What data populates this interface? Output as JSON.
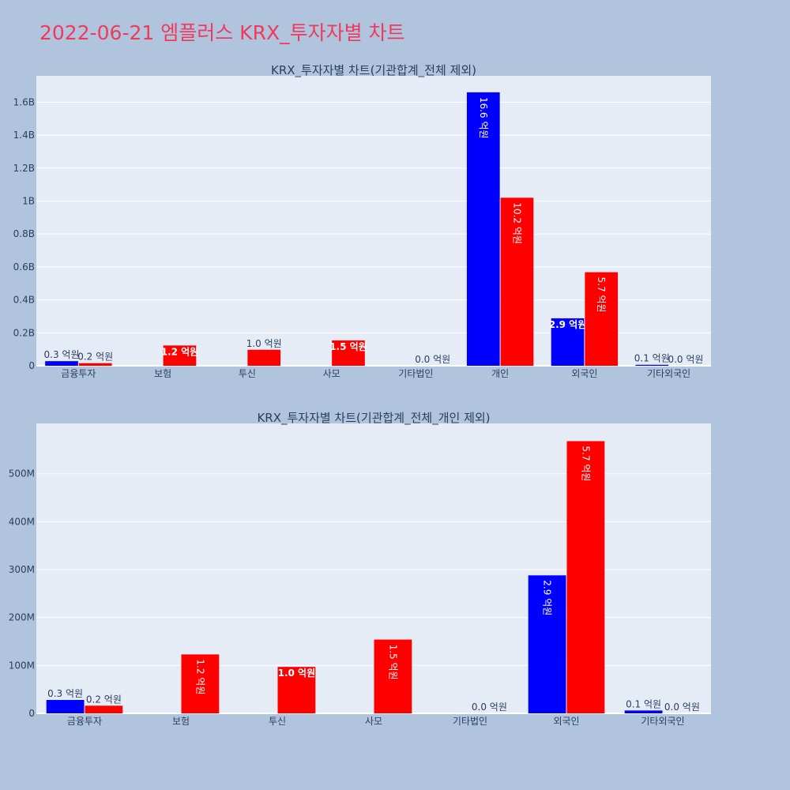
{
  "page": {
    "title": "2022-06-21 엠플러스 KRX_투자자별 차트"
  },
  "colors": {
    "buy": "#0000ff",
    "sell": "#ff0000",
    "plot_bg": "#e5ecf6",
    "paper_bg": "#b0c4de",
    "title": "#ef3b5b"
  },
  "chart_data": [
    {
      "type": "bar",
      "title": "KRX_투자자별 차트(기관합계_전체 제외)",
      "categories": [
        "금융투자",
        "보험",
        "투신",
        "사모",
        "기타법인",
        "개인",
        "외국인",
        "기타외국인"
      ],
      "series": [
        {
          "color": "#0000ff",
          "values": [
            28000000,
            0,
            0,
            0,
            0,
            1660000000,
            288000000,
            6000000
          ],
          "labels": [
            "0.3 억원",
            "",
            "",
            "",
            "",
            "16.6 억원",
            "2.9 억원",
            "0.1 억원"
          ]
        },
        {
          "color": "#ff0000",
          "values": [
            16000000,
            123000000,
            97000000,
            154000000,
            0,
            1020000000,
            568000000,
            0
          ],
          "labels": [
            "0.2 억원",
            "1.2 억원",
            "1.0 억원",
            "1.5 억원",
            "0.0 억원",
            "10.2 억원",
            "5.7 억원",
            "0.0 억원"
          ]
        }
      ],
      "ylim": [
        0,
        1760000000
      ],
      "yticks": [
        0,
        200000000,
        400000000,
        600000000,
        800000000,
        1000000000,
        1200000000,
        1400000000,
        1600000000
      ],
      "yticklabels": [
        "0",
        "0.2B",
        "0.4B",
        "0.6B",
        "0.8B",
        "1B",
        "1.2B",
        "1.4B",
        "1.6B"
      ],
      "grid": true
    },
    {
      "type": "bar",
      "title": "KRX_투자자별 차트(기관합계_전체_개인 제외)",
      "categories": [
        "금융투자",
        "보험",
        "투신",
        "사모",
        "기타법인",
        "외국인",
        "기타외국인"
      ],
      "series": [
        {
          "color": "#0000ff",
          "values": [
            28000000,
            0,
            0,
            0,
            0,
            288000000,
            6000000
          ],
          "labels": [
            "0.3 억원",
            "",
            "",
            "",
            "",
            "2.9 억원",
            "0.1 억원"
          ]
        },
        {
          "color": "#ff0000",
          "values": [
            16000000,
            123000000,
            97000000,
            154000000,
            0,
            568000000,
            0
          ],
          "labels": [
            "0.2 억원",
            "1.2 억원",
            "1.0 억원",
            "1.5 억원",
            "0.0 억원",
            "5.7 억원",
            "0.0 억원"
          ]
        }
      ],
      "ylim": [
        0,
        605000000
      ],
      "yticks": [
        0,
        100000000,
        200000000,
        300000000,
        400000000,
        500000000
      ],
      "yticklabels": [
        "0",
        "100M",
        "200M",
        "300M",
        "400M",
        "500M"
      ],
      "grid": true
    }
  ]
}
